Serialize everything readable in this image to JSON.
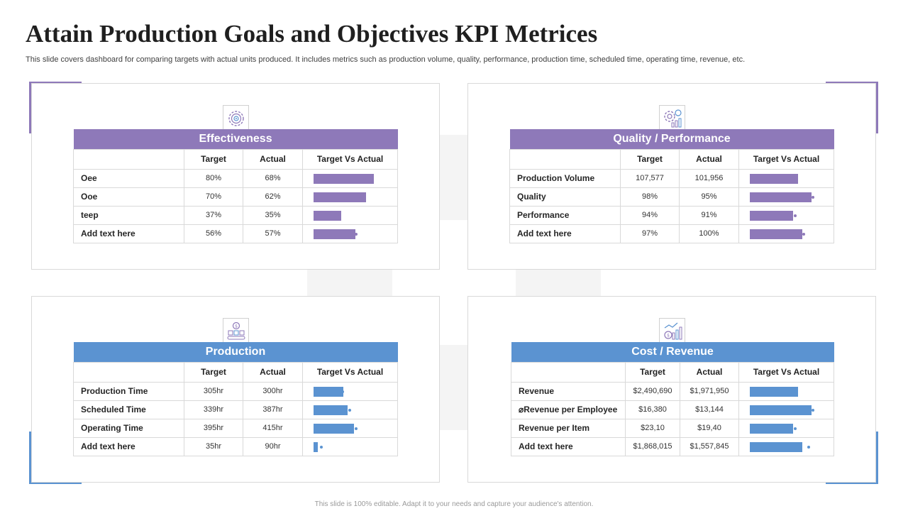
{
  "title": "Attain Production Goals and Objectives KPI Metrices",
  "subtitle": "This slide covers dashboard for comparing targets with actual units produced. It includes metrics such as production volume, quality, performance, production time, scheduled time, operating time, revenue, etc.",
  "footer": "This slide is 100% editable. Adapt it to your needs and capture your audience's attention.",
  "colors": {
    "purple": "#8e79b9",
    "blue": "#5b93d1"
  },
  "columns": {
    "target": "Target",
    "actual": "Actual",
    "compare": "Target Vs Actual"
  },
  "panels": [
    {
      "key": "effectiveness",
      "title": "Effectiveness",
      "icon": "gear-target-icon",
      "rows": [
        {
          "label": "Oee",
          "target": "80%",
          "actual": "68%",
          "bar": 0.8,
          "marker": 0.68
        },
        {
          "label": "Ooe",
          "target": "70%",
          "actual": "62%",
          "bar": 0.7,
          "marker": 0.62
        },
        {
          "label": "teep",
          "target": "37%",
          "actual": "35%",
          "bar": 0.37,
          "marker": 0.35
        },
        {
          "label": "Add  text here",
          "target": "56%",
          "actual": "57%",
          "bar": 0.56,
          "marker": 0.57
        }
      ]
    },
    {
      "key": "quality",
      "title": "Quality / Performance",
      "icon": "gear-chart-icon",
      "rows": [
        {
          "label": "Production  Volume",
          "target": "107,577",
          "actual": "101,956",
          "bar": 0.64,
          "marker": 0.61
        },
        {
          "label": "Quality",
          "target": "98%",
          "actual": "95%",
          "bar": 0.82,
          "marker": 0.84
        },
        {
          "label": "Performance",
          "target": "94%",
          "actual": "91%",
          "bar": 0.58,
          "marker": 0.6
        },
        {
          "label": "Add  text here",
          "target": "97%",
          "actual": "100%",
          "bar": 0.7,
          "marker": 0.72
        }
      ]
    },
    {
      "key": "production",
      "title": "Production",
      "icon": "conveyor-icon",
      "rows": [
        {
          "label": "Production Time",
          "target": "305hr",
          "actual": "300hr",
          "bar": 0.4,
          "marker": 0.39
        },
        {
          "label": "Scheduled Time",
          "target": "339hr",
          "actual": "387hr",
          "bar": 0.45,
          "marker": 0.48
        },
        {
          "label": "Operating Time",
          "target": "395hr",
          "actual": "415hr",
          "bar": 0.54,
          "marker": 0.57
        },
        {
          "label": "Add  text here",
          "target": "35hr",
          "actual": "90hr",
          "bar": 0.06,
          "marker": 0.1
        }
      ]
    },
    {
      "key": "cost",
      "title": "Cost / Revenue",
      "icon": "revenue-chart-icon",
      "rows": [
        {
          "label": "Revenue",
          "target": "$2,490,690",
          "actual": "$1,971,950",
          "bar": 0.64,
          "marker": 0.61
        },
        {
          "label": "⌀Revenue per Employee",
          "target": "$16,380",
          "actual": "$13,144",
          "bar": 0.82,
          "marker": 0.84
        },
        {
          "label": "Revenue per Item",
          "target": "$23,10",
          "actual": "$19,40",
          "bar": 0.58,
          "marker": 0.6
        },
        {
          "label": "Add  text here",
          "target": "$1,868,015",
          "actual": "$1,557,845",
          "bar": 0.7,
          "marker": 0.78
        }
      ]
    }
  ]
}
